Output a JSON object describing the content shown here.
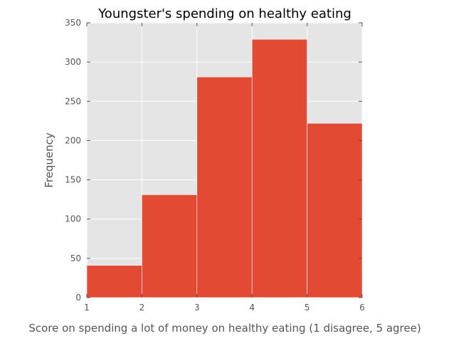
{
  "chart_data": {
    "type": "bar",
    "title": "Youngster's spending on healthy eating",
    "xlabel": "Score on spending a lot of money on healthy eating (1 disagree, 5 agree)",
    "ylabel": "Frequency",
    "bins": [
      {
        "from": 1,
        "to": 2,
        "value": 41
      },
      {
        "from": 2,
        "to": 3,
        "value": 131
      },
      {
        "from": 3,
        "to": 4,
        "value": 281
      },
      {
        "from": 4,
        "to": 5,
        "value": 329
      },
      {
        "from": 5,
        "to": 6,
        "value": 222
      }
    ],
    "xlim": [
      1,
      6
    ],
    "ylim": [
      0,
      350
    ],
    "xticks": [
      "1",
      "2",
      "3",
      "4",
      "5",
      "6"
    ],
    "yticks": [
      "0",
      "50",
      "100",
      "150",
      "200",
      "250",
      "300",
      "350"
    ],
    "grid": true,
    "colors": {
      "bar": "#e24a33",
      "plot_background": "#e5e5e5",
      "grid": "#ffffff"
    }
  }
}
